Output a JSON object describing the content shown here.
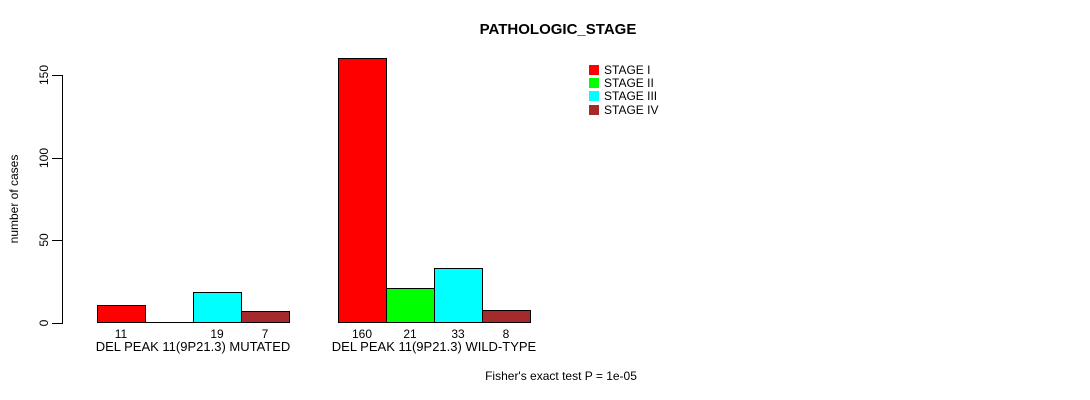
{
  "chart_data": {
    "type": "bar",
    "title": "PATHOLOGIC_STAGE",
    "ylabel": "number of cases",
    "xlabel": "",
    "ylim": [
      0,
      150
    ],
    "yticks": [
      0,
      50,
      100,
      150
    ],
    "grid": false,
    "legend_position": "top-right",
    "categories": [
      "DEL PEAK 11(9P21.3) MUTATED",
      "DEL PEAK 11(9P21.3) WILD-TYPE"
    ],
    "series": [
      {
        "name": "STAGE I",
        "color": "#FF0000",
        "values": [
          11,
          160
        ]
      },
      {
        "name": "STAGE II",
        "color": "#00FF00",
        "values": [
          0,
          21
        ]
      },
      {
        "name": "STAGE III",
        "color": "#00FFFF",
        "values": [
          19,
          33
        ]
      },
      {
        "name": "STAGE IV",
        "color": "#A52A2A",
        "values": [
          7,
          8
        ]
      }
    ],
    "bar_value_labels": [
      "11",
      "19",
      "7",
      "160",
      "21",
      "33",
      "8"
    ],
    "footnote": "Fisher's exact test P = 1e-05"
  }
}
